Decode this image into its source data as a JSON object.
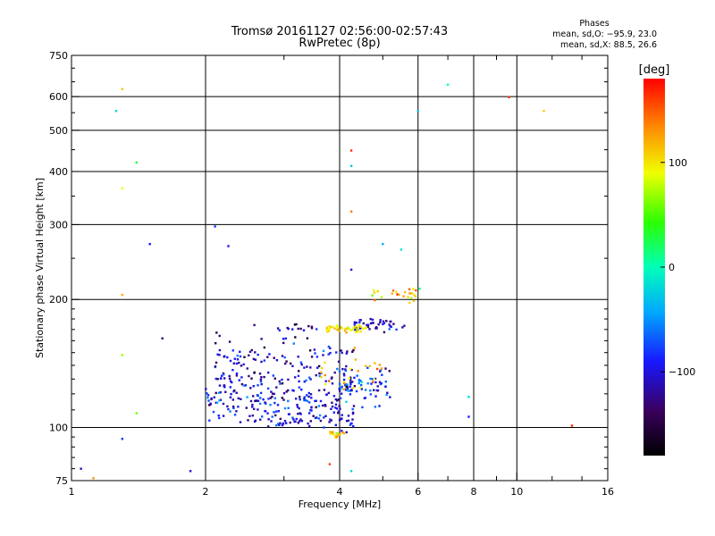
{
  "chart_data": {
    "type": "scatter",
    "title": "Tromsø 20161127 02:56:00-02:57:43",
    "subtitle": "RwPretec (8p)",
    "xlabel": "Frequency [MHz]",
    "ylabel": "Stationary phase Virtual Height [km]",
    "x_scale": "log",
    "y_scale": "log",
    "xlim": [
      1,
      16
    ],
    "ylim": [
      75,
      750
    ],
    "x_ticks": [
      1,
      2,
      4,
      6,
      8,
      10,
      16
    ],
    "x_tick_labels": [
      "1",
      "2",
      "4",
      "6",
      "8",
      "10",
      "16"
    ],
    "x_grid": [
      2,
      4,
      6,
      8,
      10
    ],
    "y_ticks": [
      75,
      100,
      200,
      300,
      400,
      500,
      600,
      750
    ],
    "y_tick_labels": [
      "75",
      "100",
      "200",
      "300",
      "400",
      "500",
      "600",
      "750"
    ],
    "y_grid": [
      100,
      200,
      300,
      400,
      500,
      600
    ],
    "legend": {
      "heading": "Phases",
      "line1": "mean, sd,O: −95.9, 23.0",
      "line2": "mean, sd,X:  88.5, 26.6"
    },
    "colorbar": {
      "label": "[deg]",
      "range": [
        -180,
        180
      ],
      "tick_values": [
        100,
        0,
        -100
      ],
      "tick_labels": [
        "100",
        "0",
        "−100"
      ]
    },
    "clusters": [
      {
        "f_min": 2.0,
        "f_max": 4.2,
        "h_center": 115,
        "h_spread": 0.06,
        "phase": -100,
        "phase_spread": 25,
        "count": 150
      },
      {
        "f_min": 2.1,
        "f_max": 4.3,
        "h_center": 138,
        "h_spread": 0.09,
        "phase": -110,
        "phase_spread": 25,
        "count": 170
      },
      {
        "f_min": 2.6,
        "f_max": 4.3,
        "h_center": 104,
        "h_spread": 0.03,
        "phase": -95,
        "phase_spread": 20,
        "count": 60
      },
      {
        "f_min": 4.0,
        "f_max": 5.2,
        "h_center": 124,
        "h_spread": 0.05,
        "phase": -90,
        "phase_spread": 30,
        "count": 70
      },
      {
        "f_min": 4.3,
        "f_max": 5.6,
        "h_center": 174,
        "h_spread": 0.015,
        "phase": -110,
        "phase_spread": 20,
        "count": 45
      },
      {
        "f_min": 3.7,
        "f_max": 4.6,
        "h_center": 171,
        "h_spread": 0.01,
        "phase": 100,
        "phase_spread": 12,
        "count": 40
      },
      {
        "f_min": 4.6,
        "f_max": 6.0,
        "h_center": 205,
        "h_spread": 0.02,
        "phase": 110,
        "phase_spread": 25,
        "count": 25
      },
      {
        "f_min": 3.6,
        "f_max": 5.0,
        "h_center": 138,
        "h_spread": 0.05,
        "phase": 120,
        "phase_spread": 25,
        "count": 25
      },
      {
        "f_min": 3.8,
        "f_max": 4.1,
        "h_center": 96,
        "h_spread": 0.01,
        "phase": 110,
        "phase_spread": 20,
        "count": 18
      },
      {
        "f_min": 2.9,
        "f_max": 3.6,
        "h_center": 171,
        "h_spread": 0.02,
        "phase": -110,
        "phase_spread": 25,
        "count": 12
      }
    ],
    "points": [
      {
        "x": 1.05,
        "y": 80,
        "phase": -105
      },
      {
        "x": 1.12,
        "y": 76,
        "phase": 130
      },
      {
        "x": 1.26,
        "y": 555,
        "phase": -20
      },
      {
        "x": 1.3,
        "y": 625,
        "phase": 110
      },
      {
        "x": 1.3,
        "y": 365,
        "phase": 90
      },
      {
        "x": 1.3,
        "y": 205,
        "phase": 120
      },
      {
        "x": 1.3,
        "y": 148,
        "phase": 70
      },
      {
        "x": 1.3,
        "y": 94,
        "phase": -80
      },
      {
        "x": 1.4,
        "y": 420,
        "phase": 30
      },
      {
        "x": 1.4,
        "y": 108,
        "phase": 60
      },
      {
        "x": 1.5,
        "y": 270,
        "phase": -90
      },
      {
        "x": 1.6,
        "y": 162,
        "phase": -130
      },
      {
        "x": 1.85,
        "y": 79,
        "phase": -100
      },
      {
        "x": 2.1,
        "y": 297,
        "phase": -80
      },
      {
        "x": 2.25,
        "y": 267,
        "phase": -95
      },
      {
        "x": 4.25,
        "y": 448,
        "phase": 165
      },
      {
        "x": 4.25,
        "y": 412,
        "phase": -30
      },
      {
        "x": 4.25,
        "y": 322,
        "phase": 140
      },
      {
        "x": 4.25,
        "y": 235,
        "phase": -100
      },
      {
        "x": 4.25,
        "y": 79,
        "phase": -20
      },
      {
        "x": 5.0,
        "y": 270,
        "phase": -40
      },
      {
        "x": 5.5,
        "y": 262,
        "phase": -10
      },
      {
        "x": 6.0,
        "y": 555,
        "phase": -30
      },
      {
        "x": 6.05,
        "y": 212,
        "phase": 10
      },
      {
        "x": 7.0,
        "y": 640,
        "phase": 0
      },
      {
        "x": 7.8,
        "y": 118,
        "phase": -20
      },
      {
        "x": 7.8,
        "y": 106,
        "phase": -90
      },
      {
        "x": 9.6,
        "y": 598,
        "phase": 165
      },
      {
        "x": 11.5,
        "y": 555,
        "phase": 110
      },
      {
        "x": 13.3,
        "y": 101,
        "phase": 170
      },
      {
        "x": 3.8,
        "y": 82,
        "phase": 160
      }
    ]
  }
}
